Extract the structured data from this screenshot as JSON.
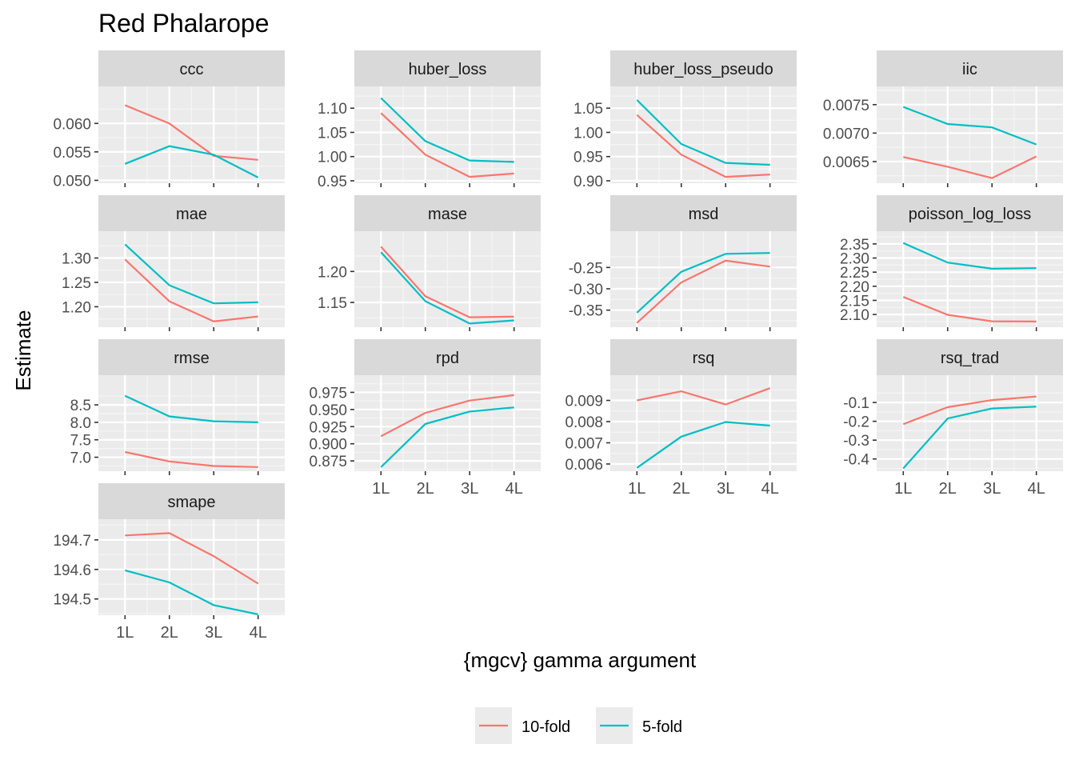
{
  "chart_data": {
    "type": "line",
    "title": "Red Phalarope",
    "xlabel": "{mgcv} gamma argument",
    "ylabel": "Estimate",
    "categories": [
      "1L",
      "2L",
      "3L",
      "4L"
    ],
    "legend": {
      "placement": "bottom",
      "entries": [
        {
          "name": "10-fold",
          "color": "#F8766D"
        },
        {
          "name": "5-fold",
          "color": "#00BFC4"
        }
      ]
    },
    "grid": true,
    "panels": [
      {
        "name": "ccc",
        "ylim": [
          0.0495,
          0.0665
        ],
        "yticks": [
          0.05,
          0.055,
          0.06
        ],
        "ytick_labels": [
          "0.050",
          "0.055",
          "0.060"
        ],
        "series": [
          {
            "name": "10-fold",
            "values": [
              0.0632,
              0.06,
              0.0543,
              0.0536
            ]
          },
          {
            "name": "5-fold",
            "values": [
              0.0529,
              0.056,
              0.0545,
              0.0505
            ]
          }
        ]
      },
      {
        "name": "huber_loss",
        "ylim": [
          0.945,
          1.145
        ],
        "yticks": [
          0.95,
          1.0,
          1.05,
          1.1
        ],
        "ytick_labels": [
          "0.95",
          "1.00",
          "1.05",
          "1.10"
        ],
        "series": [
          {
            "name": "10-fold",
            "values": [
              1.09,
              1.004,
              0.958,
              0.965
            ]
          },
          {
            "name": "5-fold",
            "values": [
              1.121,
              1.032,
              0.992,
              0.989
            ]
          }
        ]
      },
      {
        "name": "huber_loss_pseudo",
        "ylim": [
          0.895,
          1.095
        ],
        "yticks": [
          0.9,
          0.95,
          1.0,
          1.05
        ],
        "ytick_labels": [
          "0.90",
          "0.95",
          "1.00",
          "1.05"
        ],
        "series": [
          {
            "name": "10-fold",
            "values": [
              1.036,
              0.954,
              0.908,
              0.913
            ]
          },
          {
            "name": "5-fold",
            "values": [
              1.067,
              0.976,
              0.937,
              0.933
            ]
          }
        ]
      },
      {
        "name": "iic",
        "ylim": [
          0.00612,
          0.00782
        ],
        "yticks": [
          0.0065,
          0.007,
          0.0075
        ],
        "ytick_labels": [
          "0.0065",
          "0.0070",
          "0.0075"
        ],
        "series": [
          {
            "name": "10-fold",
            "values": [
              0.00658,
              0.00641,
              0.00621,
              0.00659
            ]
          },
          {
            "name": "5-fold",
            "values": [
              0.00746,
              0.00716,
              0.0071,
              0.0068
            ]
          }
        ]
      },
      {
        "name": "mae",
        "ylim": [
          1.158,
          1.355
        ],
        "yticks": [
          1.2,
          1.25,
          1.3
        ],
        "ytick_labels": [
          "1.20",
          "1.25",
          "1.30"
        ],
        "series": [
          {
            "name": "10-fold",
            "values": [
              1.297,
              1.211,
              1.17,
              1.18
            ]
          },
          {
            "name": "5-fold",
            "values": [
              1.328,
              1.244,
              1.207,
              1.209
            ]
          }
        ]
      },
      {
        "name": "mase",
        "ylim": [
          1.11,
          1.265
        ],
        "yticks": [
          1.15,
          1.2
        ],
        "ytick_labels": [
          "1.15",
          "1.20"
        ],
        "series": [
          {
            "name": "10-fold",
            "values": [
              1.24,
              1.16,
              1.126,
              1.127
            ]
          },
          {
            "name": "5-fold",
            "values": [
              1.231,
              1.152,
              1.116,
              1.121
            ]
          }
        ]
      },
      {
        "name": "msd",
        "ylim": [
          -0.39,
          -0.165
        ],
        "yticks": [
          -0.35,
          -0.3,
          -0.25
        ],
        "ytick_labels": [
          "-0.35",
          "-0.30",
          "-0.25"
        ],
        "series": [
          {
            "name": "10-fold",
            "values": [
              -0.38,
              -0.285,
              -0.234,
              -0.248
            ]
          },
          {
            "name": "5-fold",
            "values": [
              -0.356,
              -0.26,
              -0.218,
              -0.216
            ]
          }
        ]
      },
      {
        "name": "poisson_log_loss",
        "ylim": [
          2.055,
          2.395
        ],
        "yticks": [
          2.1,
          2.15,
          2.2,
          2.25,
          2.3,
          2.35
        ],
        "ytick_labels": [
          "2.10",
          "2.15",
          "2.20",
          "2.25",
          "2.30",
          "2.35"
        ],
        "series": [
          {
            "name": "10-fold",
            "values": [
              2.162,
              2.099,
              2.076,
              2.075
            ]
          },
          {
            "name": "5-fold",
            "values": [
              2.353,
              2.284,
              2.262,
              2.264
            ]
          }
        ]
      },
      {
        "name": "rmse",
        "ylim": [
          6.6,
          9.35
        ],
        "yticks": [
          7.0,
          7.5,
          8.0,
          8.5
        ],
        "ytick_labels": [
          "7.0",
          "7.5",
          "8.0",
          "8.5"
        ],
        "series": [
          {
            "name": "10-fold",
            "values": [
              7.15,
              6.88,
              6.75,
              6.72
            ]
          },
          {
            "name": "5-fold",
            "values": [
              8.76,
              8.17,
              8.03,
              8.0
            ]
          }
        ]
      },
      {
        "name": "rpd",
        "ylim": [
          0.86,
          1.0
        ],
        "yticks": [
          0.875,
          0.9,
          0.925,
          0.95,
          0.975
        ],
        "ytick_labels": [
          "0.875",
          "0.900",
          "0.925",
          "0.950",
          "0.975"
        ],
        "series": [
          {
            "name": "10-fold",
            "values": [
              0.911,
              0.945,
              0.963,
              0.971
            ]
          },
          {
            "name": "5-fold",
            "values": [
              0.866,
              0.929,
              0.947,
              0.953
            ]
          }
        ]
      },
      {
        "name": "rsq",
        "ylim": [
          0.00566,
          0.01019
        ],
        "yticks": [
          0.006,
          0.007,
          0.008,
          0.009
        ],
        "ytick_labels": [
          "0.006",
          "0.007",
          "0.008",
          "0.009"
        ],
        "series": [
          {
            "name": "10-fold",
            "values": [
              0.009,
              0.00943,
              0.00881,
              0.00958
            ]
          },
          {
            "name": "5-fold",
            "values": [
              0.00582,
              0.00729,
              0.00798,
              0.00781
            ]
          }
        ]
      },
      {
        "name": "rsq_trad",
        "ylim": [
          -0.465,
          0.045
        ],
        "yticks": [
          -0.4,
          -0.3,
          -0.2,
          -0.1
        ],
        "ytick_labels": [
          "-0.4",
          "-0.3",
          "-0.2",
          "-0.1"
        ],
        "series": [
          {
            "name": "10-fold",
            "values": [
              -0.215,
              -0.125,
              -0.087,
              -0.068
            ]
          },
          {
            "name": "5-fold",
            "values": [
              -0.45,
              -0.185,
              -0.132,
              -0.122
            ]
          }
        ]
      },
      {
        "name": "smape",
        "ylim": [
          194.445,
          194.77
        ],
        "yticks": [
          194.5,
          194.6,
          194.7
        ],
        "ytick_labels": [
          "194.5",
          "194.6",
          "194.7"
        ],
        "series": [
          {
            "name": "10-fold",
            "values": [
              194.715,
              194.723,
              194.645,
              194.552
            ]
          },
          {
            "name": "5-fold",
            "values": [
              194.597,
              194.556,
              194.479,
              194.448
            ]
          }
        ]
      }
    ]
  }
}
